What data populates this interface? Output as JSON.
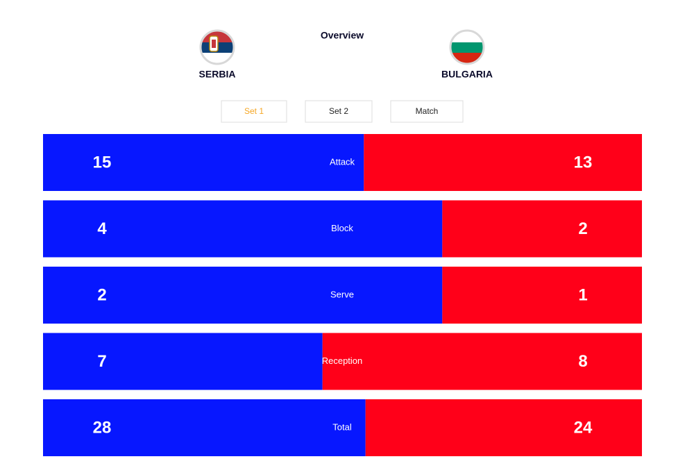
{
  "header": {
    "title": "Overview"
  },
  "teams": [
    {
      "name": "SERBIA",
      "color": "#0717ff"
    },
    {
      "name": "BULGARIA",
      "color": "#ff0019"
    }
  ],
  "tabs": [
    "Set 1",
    "Set 2",
    "Match"
  ],
  "active_tab": 0,
  "stats": [
    {
      "label": "Attack",
      "home": 15,
      "away": 13
    },
    {
      "label": "Block",
      "home": 4,
      "away": 2
    },
    {
      "label": "Serve",
      "home": 2,
      "away": 1
    },
    {
      "label": "Reception",
      "home": 7,
      "away": 8
    },
    {
      "label": "Total",
      "home": 28,
      "away": 24
    }
  ]
}
